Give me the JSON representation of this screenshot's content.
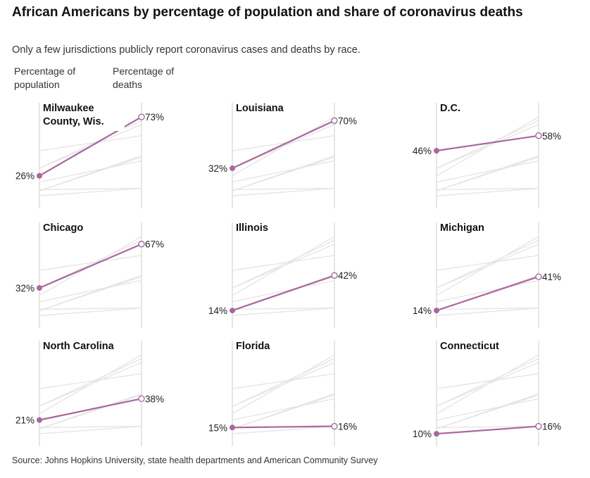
{
  "title": "African Americans by percentage of population and share of coronavirus deaths",
  "subtitle": "Only a few jurisdictions publicly report coronavirus cases and deaths by race.",
  "column_headers": {
    "population": "Percentage of population",
    "deaths": "Percentage of deaths"
  },
  "source": "Source: Johns Hopkins University, state health departments and American Community Survey",
  "colors": {
    "highlight": "#a8689f",
    "background_line": "#e4e4e4",
    "axis": "#d6d6d6"
  },
  "chart_data": {
    "type": "line",
    "title": "African Americans by percentage of population and share of coronavirus deaths",
    "xlabel": "",
    "ylabel": "",
    "x_categories": [
      "Percentage of population",
      "Percentage of deaths"
    ],
    "ylim": [
      0,
      80
    ],
    "series": [
      {
        "name": "Milwaukee County, Wis.",
        "population": 26,
        "deaths": 73,
        "population_label": "26%",
        "deaths_label": "73%"
      },
      {
        "name": "Louisiana",
        "population": 32,
        "deaths": 70,
        "population_label": "32%",
        "deaths_label": "70%"
      },
      {
        "name": "D.C.",
        "population": 46,
        "deaths": 58,
        "population_label": "46%",
        "deaths_label": "58%"
      },
      {
        "name": "Chicago",
        "population": 32,
        "deaths": 67,
        "population_label": "32%",
        "deaths_label": "67%"
      },
      {
        "name": "Illinois",
        "population": 14,
        "deaths": 42,
        "population_label": "14%",
        "deaths_label": "42%"
      },
      {
        "name": "Michigan",
        "population": 14,
        "deaths": 41,
        "population_label": "14%",
        "deaths_label": "41%"
      },
      {
        "name": "North Carolina",
        "population": 21,
        "deaths": 38,
        "population_label": "21%",
        "deaths_label": "38%"
      },
      {
        "name": "Florida",
        "population": 15,
        "deaths": 16,
        "population_label": "15%",
        "deaths_label": "16%"
      },
      {
        "name": "Connecticut",
        "population": 10,
        "deaths": 16,
        "population_label": "10%",
        "deaths_label": "16%"
      }
    ]
  }
}
